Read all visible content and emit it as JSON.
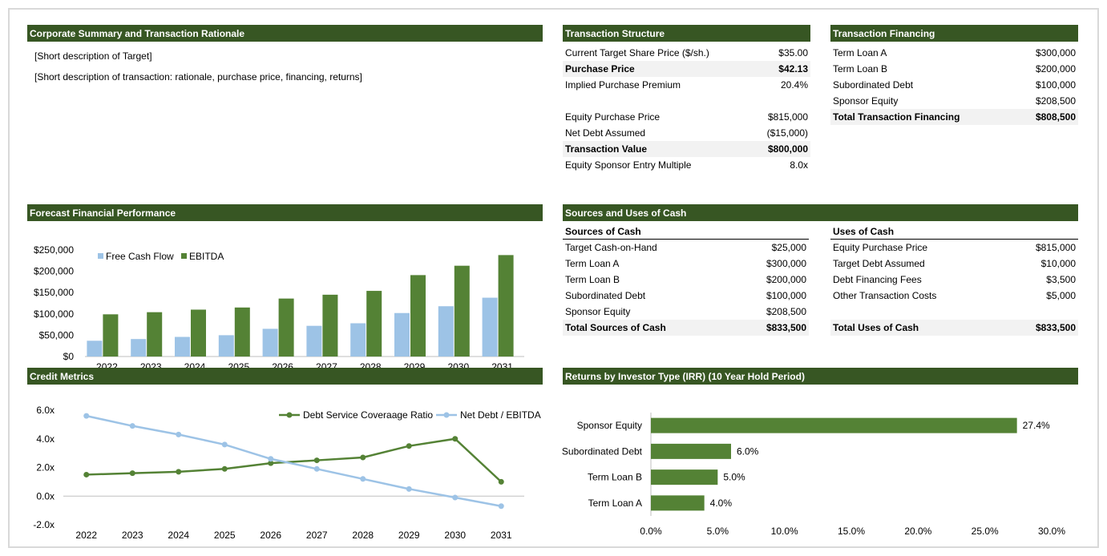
{
  "corporate": {
    "title": "Corporate Summary and Transaction Rationale",
    "lines": [
      "[Short description of Target]",
      "[Short description of transaction: rationale, purchase price, financing, returns]"
    ]
  },
  "structure": {
    "title": "Transaction Structure",
    "rows": [
      {
        "label": "Current Target Share Price ($/sh.)",
        "value": "$35.00",
        "bold": false
      },
      {
        "label": "Purchase Price",
        "value": "$42.13",
        "bold": true
      },
      {
        "label": "Implied Purchase Premium",
        "value": "20.4%",
        "bold": false
      },
      {
        "label": "",
        "value": "",
        "bold": false
      },
      {
        "label": "Equity Purchase Price",
        "value": "$815,000",
        "bold": false
      },
      {
        "label": "Net Debt Assumed",
        "value": "($15,000)",
        "bold": false
      },
      {
        "label": "Transaction Value",
        "value": "$800,000",
        "bold": true
      },
      {
        "label": "Equity Sponsor Entry Multiple",
        "value": "8.0x",
        "bold": false
      }
    ]
  },
  "financing": {
    "title": "Transaction Financing",
    "rows": [
      {
        "label": "Term Loan A",
        "value": "$300,000",
        "bold": false
      },
      {
        "label": "Term Loan B",
        "value": "$200,000",
        "bold": false
      },
      {
        "label": "Subordinated Debt",
        "value": "$100,000",
        "bold": false
      },
      {
        "label": "Sponsor Equity",
        "value": "$208,500",
        "bold": false
      },
      {
        "label": "Total Transaction Financing",
        "value": "$808,500",
        "bold": true
      }
    ]
  },
  "sources_uses": {
    "title": "Sources and Uses of Cash",
    "sources_title": "Sources of Cash",
    "sources": [
      {
        "label": "Target Cash-on-Hand",
        "value": "$25,000",
        "bold": false
      },
      {
        "label": "Term Loan A",
        "value": "$300,000",
        "bold": false
      },
      {
        "label": "Term Loan B",
        "value": "$200,000",
        "bold": false
      },
      {
        "label": "Subordinated Debt",
        "value": "$100,000",
        "bold": false
      },
      {
        "label": "Sponsor Equity",
        "value": "$208,500",
        "bold": false
      },
      {
        "label": "Total Sources of Cash",
        "value": "$833,500",
        "bold": true
      }
    ],
    "uses_title": "Uses of Cash",
    "uses": [
      {
        "label": "Equity Purchase Price",
        "value": "$815,000",
        "bold": false
      },
      {
        "label": "Target Debt Assumed",
        "value": "$10,000",
        "bold": false
      },
      {
        "label": "Debt Financing Fees",
        "value": "$3,500",
        "bold": false
      },
      {
        "label": "Other Transaction Costs",
        "value": "$5,000",
        "bold": false
      },
      {
        "label": "",
        "value": "",
        "bold": false
      },
      {
        "label": "Total Uses of Cash",
        "value": "$833,500",
        "bold": true
      }
    ]
  },
  "forecast": {
    "title": "Forecast Financial Performance"
  },
  "credit": {
    "title": "Credit Metrics"
  },
  "returns": {
    "title": "Returns by Investor Type (IRR) (10 Year Hold Period)"
  },
  "chart_data": [
    {
      "id": "forecast",
      "type": "bar",
      "categories": [
        "2022",
        "2023",
        "2024",
        "2025",
        "2026",
        "2027",
        "2028",
        "2029",
        "2030",
        "2031"
      ],
      "series": [
        {
          "name": "Free Cash Flow",
          "color": "#9dc3e6",
          "values": [
            37000,
            41000,
            46000,
            50000,
            65000,
            72000,
            78000,
            102000,
            118000,
            138000
          ]
        },
        {
          "name": "EBITDA",
          "color": "#548235",
          "values": [
            99000,
            104000,
            110000,
            115000,
            136000,
            145000,
            154000,
            191000,
            213000,
            238000
          ]
        }
      ],
      "ylim": [
        0,
        250000
      ],
      "yticks": [
        "$0",
        "$50,000",
        "$100,000",
        "$150,000",
        "$200,000",
        "$250,000"
      ],
      "legend": "top-left"
    },
    {
      "id": "credit",
      "type": "line",
      "categories": [
        "2022",
        "2023",
        "2024",
        "2025",
        "2026",
        "2027",
        "2028",
        "2029",
        "2030",
        "2031"
      ],
      "series": [
        {
          "name": "Debt Service Coveraage Ratio",
          "color": "#548235",
          "values": [
            1.5,
            1.6,
            1.7,
            1.9,
            2.3,
            2.5,
            2.7,
            3.5,
            4.0,
            1.0
          ]
        },
        {
          "name": "Net Debt / EBITDA",
          "color": "#9dc3e6",
          "values": [
            5.6,
            4.9,
            4.3,
            3.6,
            2.6,
            1.9,
            1.2,
            0.5,
            -0.1,
            -0.7
          ]
        }
      ],
      "ylim": [
        -2,
        6
      ],
      "yticks": [
        "-2.0x",
        "0.0x",
        "2.0x",
        "4.0x",
        "6.0x"
      ],
      "legend": "top-right"
    },
    {
      "id": "returns",
      "type": "bar",
      "orientation": "horizontal",
      "categories": [
        "Sponsor Equity",
        "Subordinated Debt",
        "Term Loan B",
        "Term Loan A"
      ],
      "values": [
        27.4,
        6.0,
        5.0,
        4.0
      ],
      "labels": [
        "27.4%",
        "6.0%",
        "5.0%",
        "4.0%"
      ],
      "color": "#548235",
      "xlim": [
        0,
        30
      ],
      "xticks": [
        "0.0%",
        "5.0%",
        "10.0%",
        "15.0%",
        "20.0%",
        "25.0%",
        "30.0%"
      ]
    }
  ]
}
